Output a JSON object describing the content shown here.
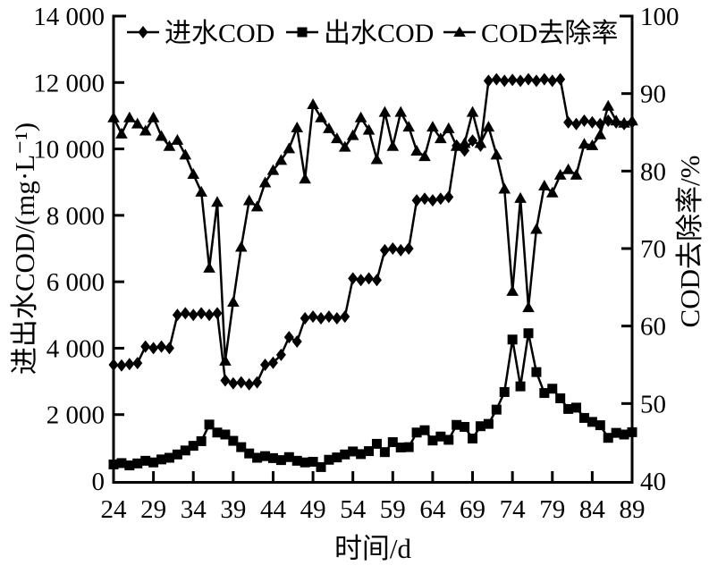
{
  "figure": {
    "background": "#ffffff",
    "ink_color": "#000000",
    "legend": {
      "items": [
        {
          "id": "influent-cod",
          "label": "进水COD",
          "marker": "diamond"
        },
        {
          "id": "effluent-cod",
          "label": "出水COD",
          "marker": "square"
        },
        {
          "id": "removal-rate",
          "label": "COD去除率",
          "marker": "triangle"
        }
      ]
    },
    "x_axis": {
      "label": "时间/d",
      "tick_values": [
        24,
        29,
        34,
        39,
        44,
        49,
        54,
        59,
        64,
        69,
        74,
        79,
        84,
        89
      ]
    },
    "y_axis_left": {
      "label": "进出水COD/(mg·L⁻¹)",
      "tick_values": [
        0,
        2000,
        4000,
        6000,
        8000,
        10000,
        12000,
        14000
      ],
      "tick_labels": [
        "0",
        "2 000",
        "4 000",
        "6 000",
        "8 000",
        "10 000",
        "12 000",
        "14 000"
      ]
    },
    "y_axis_right": {
      "label": "COD去除率/%",
      "tick_values": [
        40,
        50,
        60,
        70,
        80,
        90,
        100
      ],
      "tick_labels": [
        "40",
        "50",
        "60",
        "70",
        "80",
        "90",
        "100"
      ]
    }
  },
  "chart_data": {
    "type": "line",
    "title": "",
    "xlabel": "时间/d",
    "ylabel_left": "进出水COD/(mg·L⁻¹)",
    "ylabel_right": "COD去除率/%",
    "xlim": [
      24,
      89
    ],
    "ylim_left": [
      0,
      14000
    ],
    "ylim_right": [
      40,
      100
    ],
    "grid": false,
    "legend_position": "top-inside",
    "marker_color": "#000000",
    "x": [
      24,
      25,
      26,
      27,
      28,
      29,
      30,
      31,
      32,
      33,
      34,
      35,
      36,
      37,
      38,
      39,
      40,
      41,
      42,
      43,
      44,
      45,
      46,
      47,
      48,
      49,
      50,
      51,
      52,
      53,
      54,
      55,
      56,
      57,
      58,
      59,
      60,
      61,
      62,
      63,
      64,
      65,
      66,
      67,
      68,
      69,
      70,
      71,
      72,
      73,
      74,
      75,
      76,
      77,
      78,
      79,
      80,
      81,
      82,
      83,
      84,
      85,
      86,
      87,
      88,
      89
    ],
    "series": [
      {
        "id": "influent-cod",
        "name": "进水COD",
        "axis": "left",
        "marker": "diamond",
        "values": [
          3500,
          3480,
          3520,
          3550,
          4050,
          4000,
          4050,
          4000,
          5000,
          5050,
          5000,
          5050,
          5000,
          5050,
          3030,
          2940,
          2970,
          2910,
          2970,
          3500,
          3560,
          3800,
          4330,
          4200,
          4900,
          4950,
          4900,
          4950,
          4900,
          4950,
          6100,
          6050,
          6100,
          6050,
          6950,
          7000,
          6950,
          7000,
          8450,
          8500,
          8450,
          8500,
          8550,
          10100,
          9950,
          10250,
          10100,
          12050,
          12100,
          12050,
          12080,
          12050,
          12100,
          12050,
          12100,
          12050,
          12100,
          10800,
          10750,
          10850,
          10800,
          10750,
          10850,
          10800,
          10750,
          10800
        ]
      },
      {
        "id": "effluent-cod",
        "name": "出水COD",
        "axis": "left",
        "marker": "square",
        "values": [
          500,
          540,
          470,
          530,
          610,
          560,
          650,
          700,
          800,
          920,
          1060,
          1200,
          1700,
          1460,
          1400,
          1210,
          1020,
          830,
          700,
          750,
          690,
          630,
          720,
          610,
          560,
          580,
          420,
          640,
          710,
          800,
          890,
          810,
          900,
          1120,
          870,
          1170,
          1010,
          1020,
          1460,
          1530,
          1220,
          1340,
          1240,
          1690,
          1630,
          1280,
          1650,
          1720,
          2150,
          2680,
          4260,
          2850,
          4450,
          3280,
          2650,
          2780,
          2490,
          2170,
          2210,
          1900,
          1780,
          1680,
          1300,
          1450,
          1400,
          1470
        ]
      },
      {
        "id": "removal-rate",
        "name": "COD去除率",
        "axis": "right",
        "marker": "triangle",
        "values": [
          86.9,
          84.8,
          86.9,
          86.1,
          85.2,
          86.9,
          84.5,
          83.2,
          84.0,
          82.1,
          79.6,
          77.3,
          67.5,
          76.0,
          55.5,
          63.1,
          70.2,
          76.2,
          75.4,
          78.5,
          80.1,
          81.4,
          82.9,
          85.6,
          79.0,
          88.6,
          86.9,
          85.5,
          84.2,
          83.1,
          84.6,
          86.9,
          85.3,
          81.5,
          87.6,
          83.2,
          87.6,
          85.7,
          82.6,
          81.9,
          85.7,
          84.2,
          85.5,
          83.2,
          83.6,
          87.6,
          83.6,
          85.7,
          82.1,
          77.7,
          64.5,
          76.5,
          62.4,
          72.5,
          78.1,
          77.2,
          79.5,
          80.2,
          79.5,
          83.5,
          83.3,
          84.7,
          88.4,
          86.5,
          86.2,
          86.5
        ]
      }
    ]
  }
}
